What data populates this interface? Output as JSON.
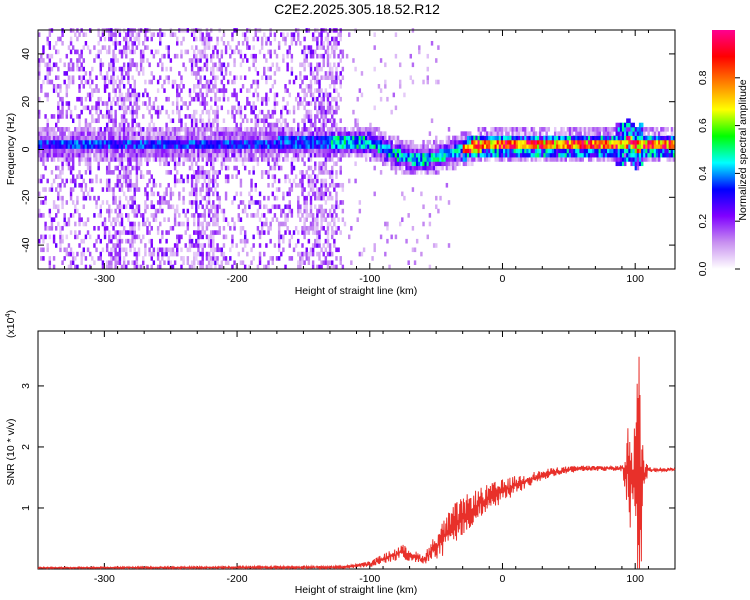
{
  "title": "C2E2.2025.305.18.52.R12",
  "chart_data": [
    {
      "type": "heatmap",
      "xlabel": "Height of straight line (km)",
      "ylabel": "Frequency (Hz)",
      "xlim": [
        -350,
        130
      ],
      "ylim": [
        -50,
        50
      ],
      "x_ticks": [
        "-300",
        "-200",
        "-100",
        "0",
        "100"
      ],
      "y_ticks": [
        "-40",
        "-20",
        "0",
        "20",
        "40"
      ],
      "colorbar": {
        "label": "Normalized spectral amplitude",
        "ticks": [
          "0.0",
          "0.2",
          "0.4",
          "0.6",
          "0.8"
        ],
        "range": [
          0,
          1
        ],
        "colors": [
          "#ffffff",
          "#c890f0",
          "#8000ff",
          "#0000ff",
          "#00ffff",
          "#00ff00",
          "#ffff00",
          "#ff8000",
          "#ff0000",
          "#ff0090"
        ]
      },
      "ridge": {
        "x": [
          -350,
          -300,
          -250,
          -200,
          -150,
          -125,
          -110,
          -95,
          -85,
          -75,
          -65,
          -55,
          -45,
          -35,
          -25,
          -15,
          -5,
          5,
          20,
          40,
          60,
          80,
          90,
          95,
          100,
          105,
          115,
          130
        ],
        "freq": [
          1,
          1.5,
          1,
          1.5,
          2,
          2,
          2.5,
          1,
          -2,
          -4,
          -5,
          -4.5,
          -3,
          -1.5,
          0,
          1,
          1,
          1,
          1,
          1,
          1,
          1,
          1,
          3,
          0,
          1,
          1,
          1
        ]
      },
      "noise_extent": [
        -350,
        -120
      ],
      "grid": false
    },
    {
      "type": "line",
      "xlabel": "Height of straight line (km)",
      "ylabel": "SNR (10 * v/v)",
      "y_multiplier": "(x10",
      "y_multiplier_exp": "4",
      "y_multiplier_close": ")",
      "xlim": [
        -350,
        130
      ],
      "ylim": [
        0,
        3.9
      ],
      "x_ticks": [
        "-300",
        "-200",
        "-100",
        "0",
        "100"
      ],
      "y_ticks": [
        "1",
        "2",
        "3"
      ],
      "series": [
        {
          "color": "#e8302a",
          "envelope_x": [
            -350,
            -120,
            -100,
            -85,
            -75,
            -60,
            -55,
            -45,
            -35,
            -25,
            -15,
            -5,
            10,
            25,
            40,
            60,
            80,
            90,
            95,
            100,
            103,
            106,
            110,
            130
          ],
          "envelope_mean": [
            0.02,
            0.03,
            0.08,
            0.2,
            0.28,
            0.15,
            0.25,
            0.5,
            0.75,
            0.95,
            1.1,
            1.22,
            1.38,
            1.5,
            1.6,
            1.65,
            1.65,
            1.65,
            1.6,
            1.5,
            1.2,
            1.55,
            1.62,
            1.63
          ],
          "envelope_amp": [
            0.01,
            0.02,
            0.05,
            0.1,
            0.12,
            0.08,
            0.15,
            0.3,
            0.35,
            0.3,
            0.25,
            0.22,
            0.15,
            0.1,
            0.07,
            0.05,
            0.04,
            0.05,
            0.8,
            1.5,
            2.5,
            0.5,
            0.05,
            0.03
          ]
        }
      ],
      "grid": false
    }
  ]
}
